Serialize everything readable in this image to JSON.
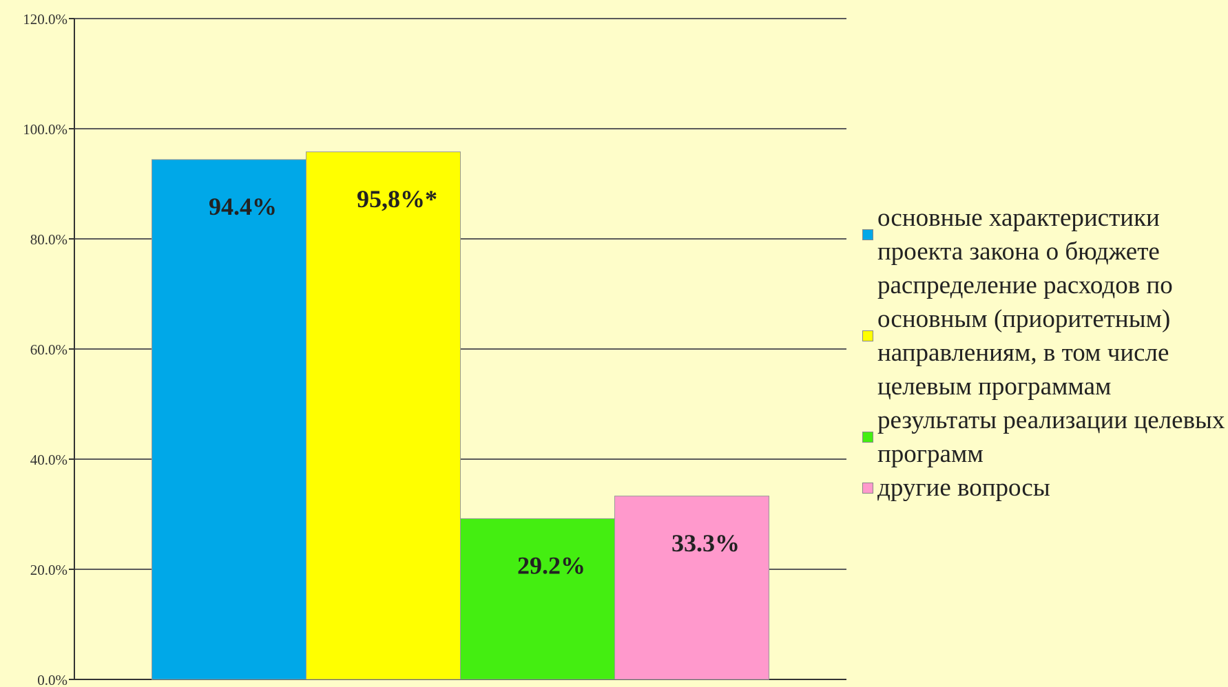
{
  "chart_data": {
    "type": "bar",
    "categories": [
      null
    ],
    "series": [
      {
        "name": "основные характеристики проекта закона о бюджете",
        "color": "#00a8e8",
        "values": [
          94.4
        ],
        "value_labels": [
          "94.4%"
        ]
      },
      {
        "name": "распределение расходов по основным (приоритетным) направлениям, в том числе целевым программам",
        "color": "#ffff00",
        "values": [
          95.8
        ],
        "value_labels": [
          "95,8%*"
        ]
      },
      {
        "name": "результаты реализации целевых программ",
        "color": "#44ee11",
        "values": [
          29.2
        ],
        "value_labels": [
          "29.2%"
        ]
      },
      {
        "name": "другие вопросы",
        "color": "#ff99cc",
        "values": [
          33.3
        ],
        "value_labels": [
          "33.3%"
        ]
      }
    ],
    "ylim": [
      0,
      120
    ],
    "yticks": [
      {
        "value": 0,
        "label": "0.0%"
      },
      {
        "value": 20,
        "label": "20.0%"
      },
      {
        "value": 40,
        "label": "40.0%"
      },
      {
        "value": 60,
        "label": "60.0%"
      },
      {
        "value": 80,
        "label": "80.0%"
      },
      {
        "value": 100,
        "label": "100.0%"
      },
      {
        "value": 120,
        "label": "120.0%"
      }
    ],
    "grid": true,
    "legend": "right"
  }
}
